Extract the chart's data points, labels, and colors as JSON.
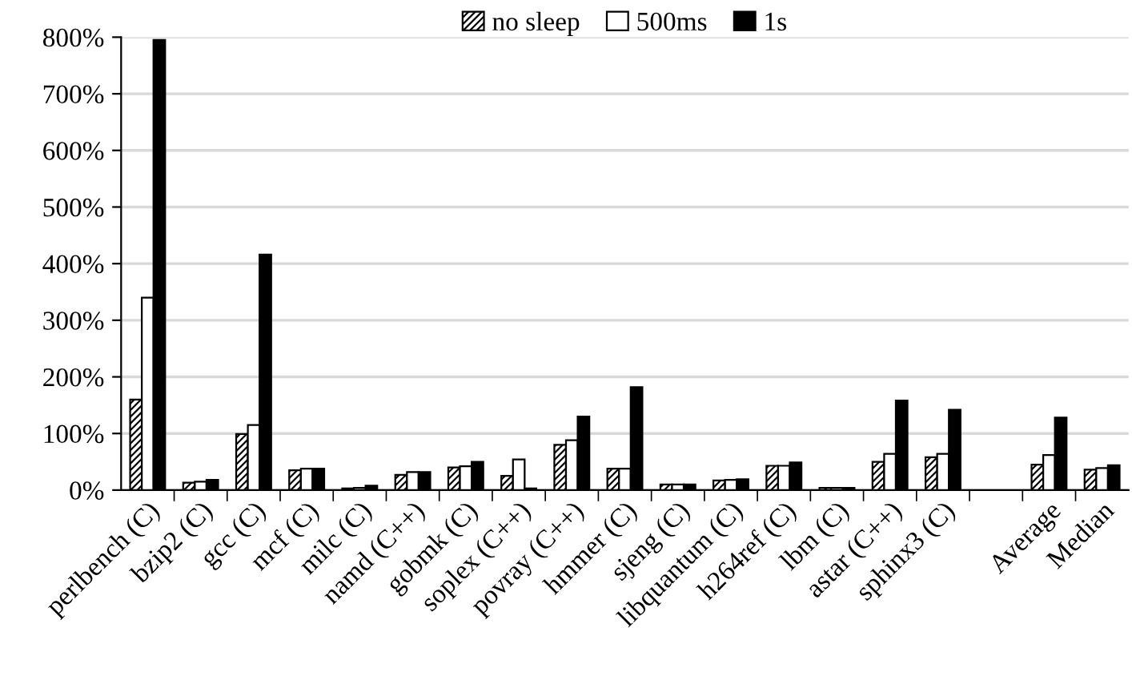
{
  "chart_data": {
    "type": "bar",
    "categories": [
      "perlbench (C)",
      "bzip2 (C)",
      "gcc (C)",
      "mcf (C)",
      "milc (C)",
      "namd (C++)",
      "gobmk (C)",
      "soplex (C++)",
      "povray (C++)",
      "hmmer (C)",
      "sjeng (C)",
      "libquantum (C)",
      "h264ref (C)",
      "lbm (C)",
      "astar (C++)",
      "sphinx3 (C)",
      null,
      "Average",
      "Median"
    ],
    "series": [
      {
        "name": "no sleep",
        "color": "#000000",
        "values": [
          160,
          13,
          99,
          35,
          3,
          27,
          40,
          25,
          80,
          38,
          10,
          17,
          43,
          4,
          50,
          58,
          null,
          45,
          36
        ]
      },
      {
        "name": "500ms",
        "color": "#ffffff",
        "values": [
          340,
          15,
          115,
          38,
          4,
          32,
          42,
          54,
          88,
          38,
          10,
          18,
          43,
          4,
          64,
          64,
          null,
          62,
          39
        ]
      },
      {
        "name": "1s",
        "color": "#000000",
        "values": [
          795,
          18,
          416,
          38,
          8,
          32,
          50,
          3,
          130,
          182,
          10,
          19,
          49,
          4,
          158,
          142,
          null,
          128,
          44
        ]
      }
    ],
    "ylim": [
      0,
      800
    ],
    "yticks": [
      {
        "value": 0,
        "label": "0%"
      },
      {
        "value": 100,
        "label": "100%"
      },
      {
        "value": 200,
        "label": "200%"
      },
      {
        "value": 300,
        "label": "300%"
      },
      {
        "value": 400,
        "label": "400%"
      },
      {
        "value": 500,
        "label": "500%"
      },
      {
        "value": 600,
        "label": "600%"
      },
      {
        "value": 700,
        "label": "700%"
      },
      {
        "value": 800,
        "label": "800%"
      }
    ],
    "grid": "y",
    "legend": "top"
  }
}
